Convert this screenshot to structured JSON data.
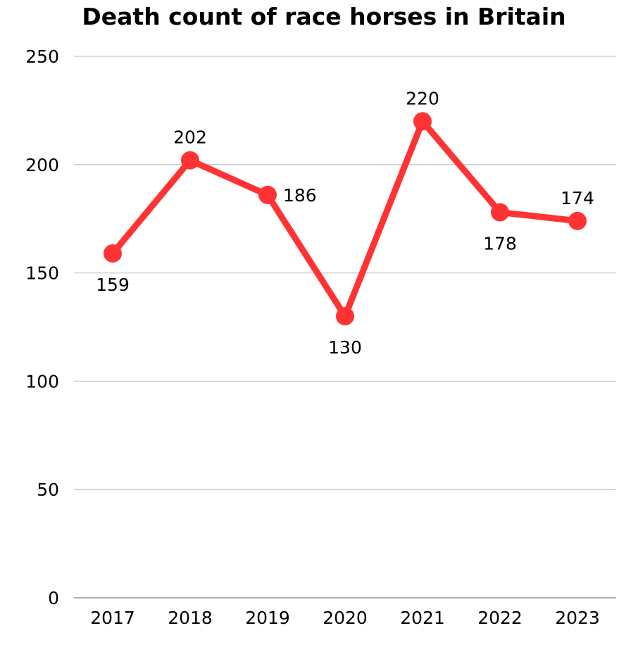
{
  "chart_data": {
    "type": "line",
    "title": "Death count of race horses in Britain",
    "categories": [
      "2017",
      "2018",
      "2019",
      "2020",
      "2021",
      "2022",
      "2023"
    ],
    "series": [
      {
        "values": [
          159,
          202,
          186,
          130,
          220,
          178,
          174
        ],
        "color": "#ff3333",
        "data_label_positions": [
          "below",
          "above",
          "right",
          "below",
          "above",
          "below",
          "above"
        ]
      }
    ],
    "ylim": [
      0,
      250
    ],
    "yticks": [
      0,
      50,
      100,
      150,
      200,
      250
    ],
    "xlabel": "",
    "ylabel": "",
    "grid": true,
    "legend": "none"
  }
}
